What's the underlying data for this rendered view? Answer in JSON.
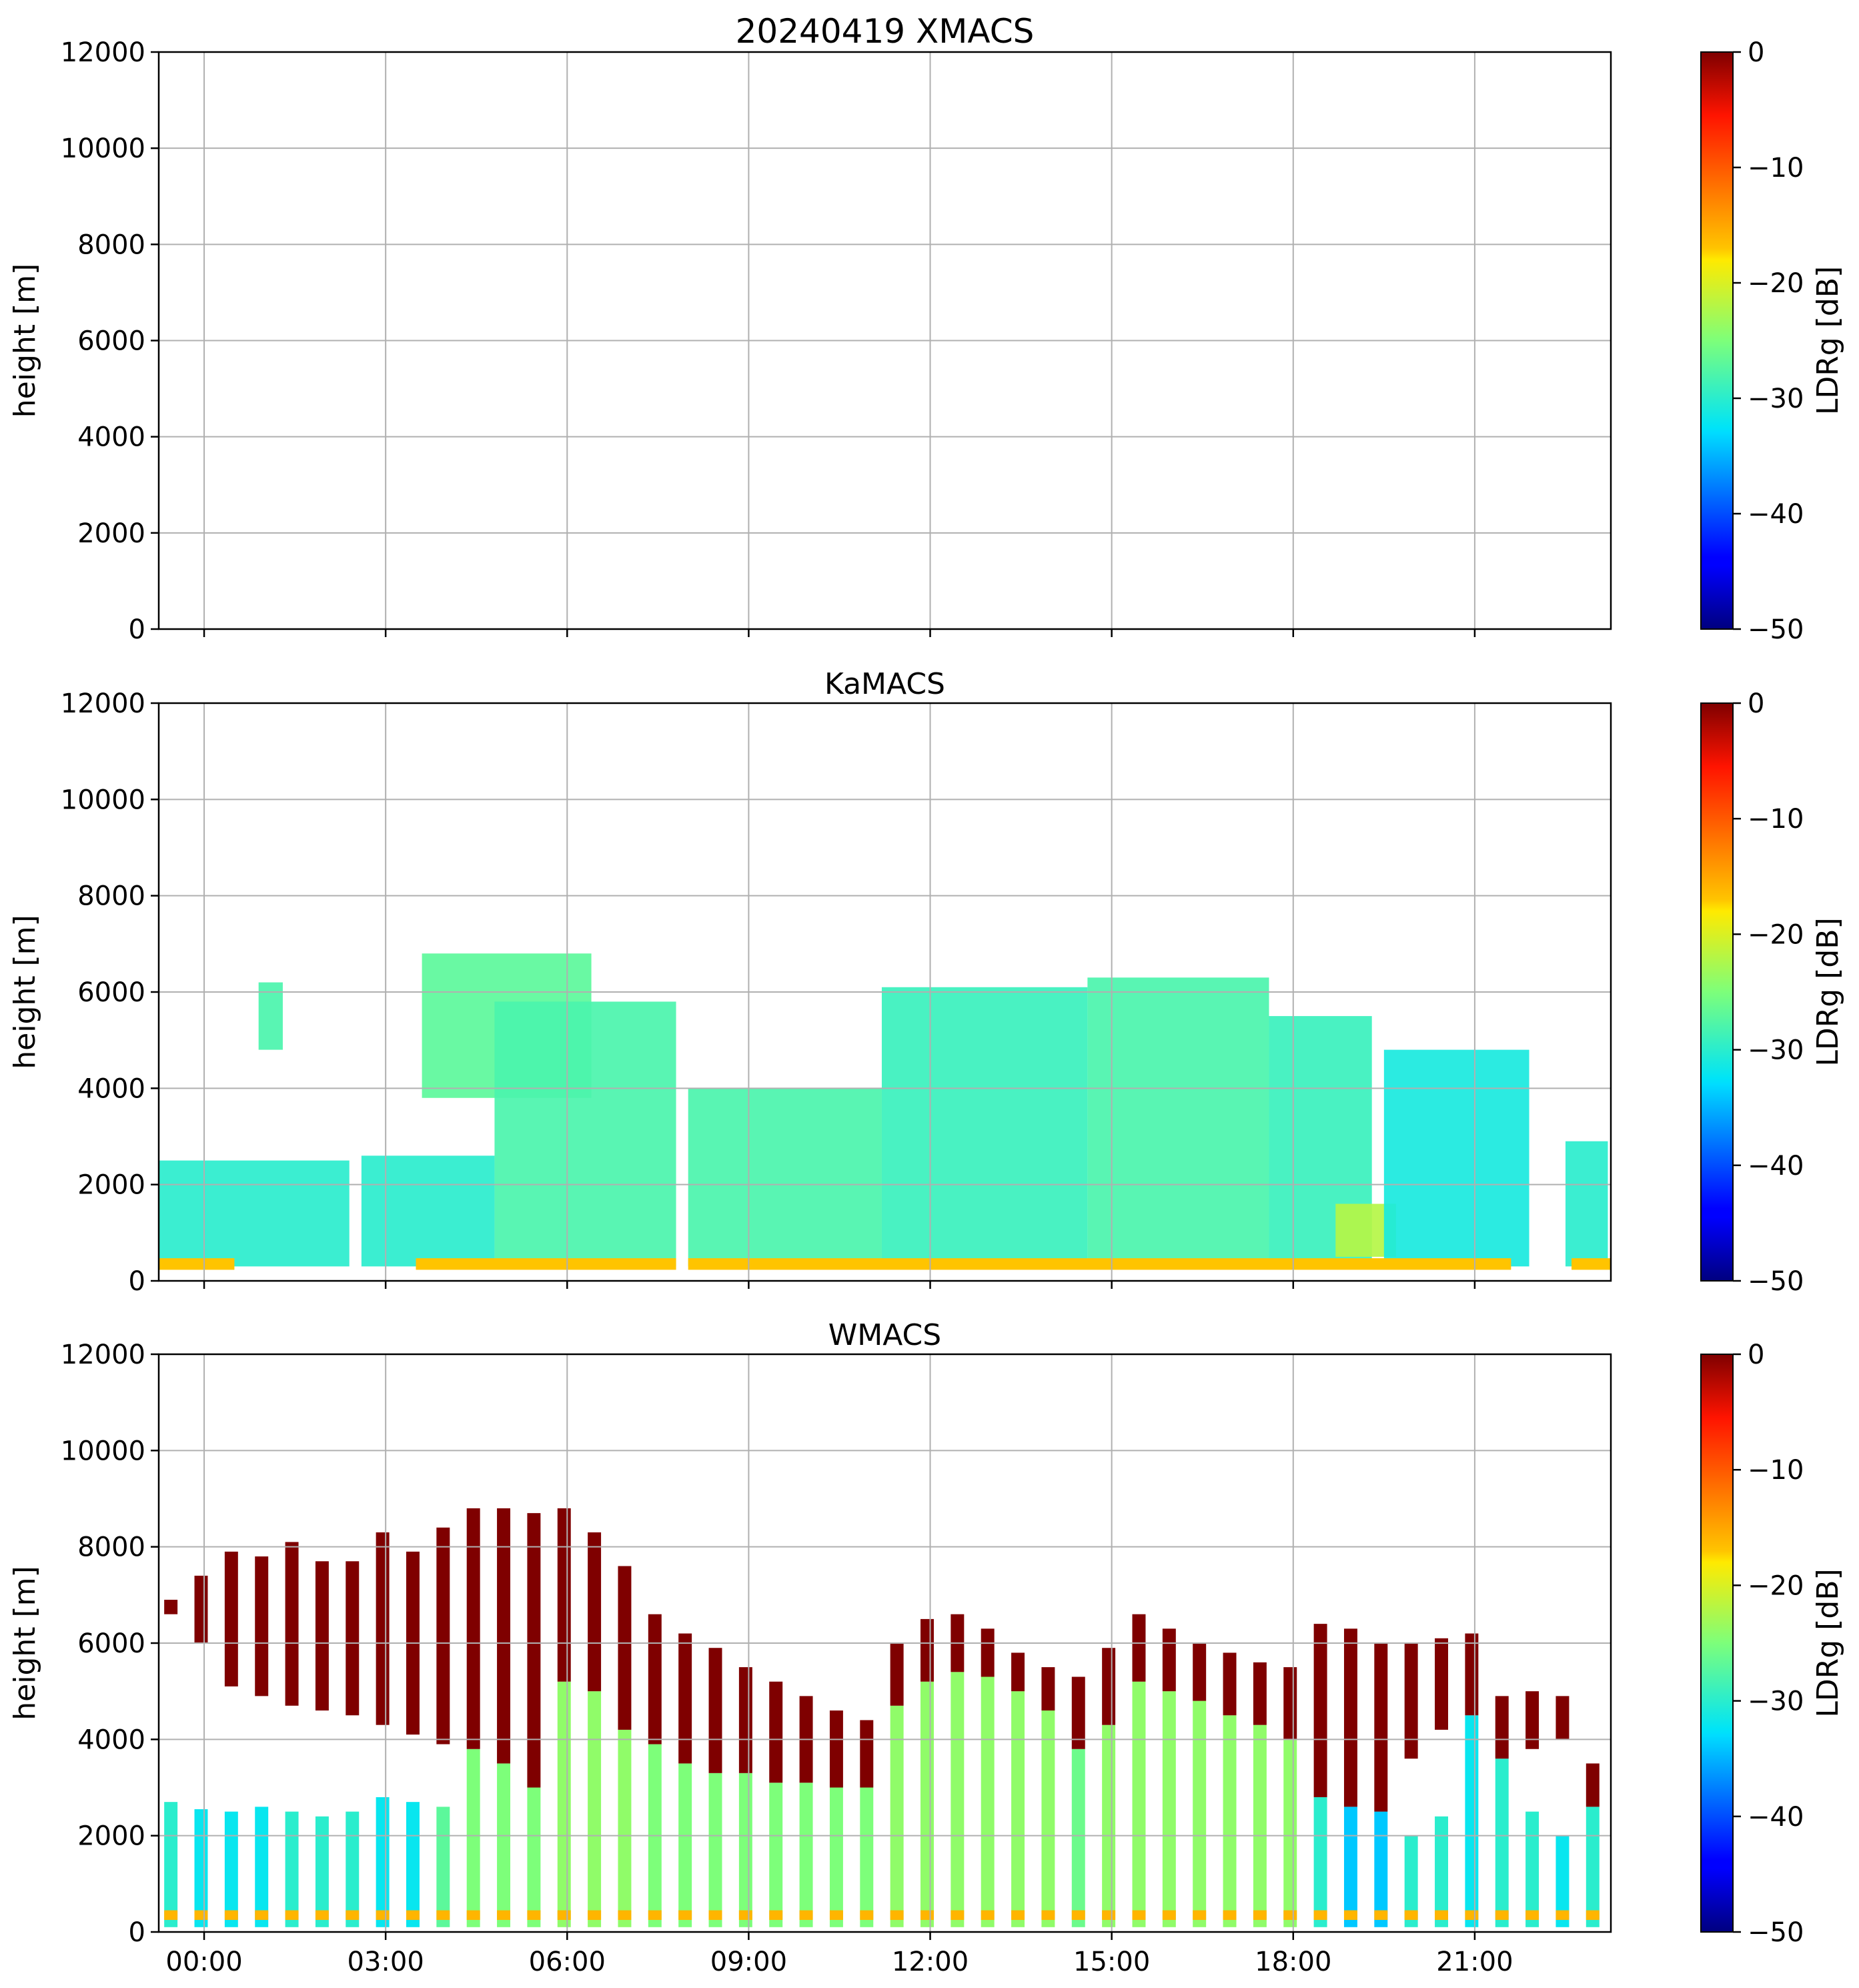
{
  "chart_data": [
    {
      "type": "heatmap",
      "title": "20240419 XMACS",
      "ylabel": "height [m]",
      "ylim": [
        0,
        12000
      ],
      "yticks": [
        0,
        2000,
        4000,
        6000,
        8000,
        10000,
        12000
      ],
      "xlim_hours": [
        -0.75,
        23.25
      ],
      "xticks_hours": [
        0,
        3,
        6,
        9,
        12,
        15,
        18,
        21
      ],
      "xticklabels": [],
      "grid": true,
      "colorbar": {
        "label": "LDRg [dB]",
        "range": [
          -50,
          0
        ],
        "ticks": [
          0,
          -10,
          -20,
          -30,
          -40,
          -50
        ],
        "tick_labels": [
          "0",
          "−10",
          "−20",
          "−30",
          "−40",
          "−50"
        ],
        "colormap": "jet"
      },
      "cloud_layers": []
    },
    {
      "type": "heatmap",
      "title": "KaMACS",
      "ylabel": "height [m]",
      "ylim": [
        0,
        12000
      ],
      "yticks": [
        0,
        2000,
        4000,
        6000,
        8000,
        10000,
        12000
      ],
      "xlim_hours": [
        -0.75,
        23.25
      ],
      "xticks_hours": [
        0,
        3,
        6,
        9,
        12,
        15,
        18,
        21
      ],
      "xticklabels": [],
      "grid": true,
      "colorbar": {
        "label": "LDRg [dB]",
        "range": [
          -50,
          0
        ],
        "ticks": [
          0,
          -10,
          -20,
          -30,
          -40,
          -50
        ],
        "tick_labels": [
          "0",
          "−10",
          "−20",
          "−30",
          "−40",
          "−50"
        ],
        "colormap": "jet"
      },
      "cloud_layers": [
        {
          "start_h": -0.75,
          "end_h": 2.4,
          "base_m": 300,
          "top_m": 2500,
          "ldr_db": -30
        },
        {
          "start_h": 0.9,
          "end_h": 1.3,
          "base_m": 4800,
          "top_m": 6200,
          "ldr_db": -28
        },
        {
          "start_h": 2.6,
          "end_h": 4.8,
          "base_m": 300,
          "top_m": 2600,
          "ldr_db": -30
        },
        {
          "start_h": 3.6,
          "end_h": 6.4,
          "base_m": 3800,
          "top_m": 6800,
          "ldr_db": -27
        },
        {
          "start_h": 4.8,
          "end_h": 7.8,
          "base_m": 300,
          "top_m": 5800,
          "ldr_db": -28
        },
        {
          "start_h": 8.0,
          "end_h": 11.2,
          "base_m": 300,
          "top_m": 4000,
          "ldr_db": -28
        },
        {
          "start_h": 11.2,
          "end_h": 14.6,
          "base_m": 300,
          "top_m": 6100,
          "ldr_db": -29
        },
        {
          "start_h": 14.6,
          "end_h": 17.6,
          "base_m": 300,
          "top_m": 6300,
          "ldr_db": -28
        },
        {
          "start_h": 17.6,
          "end_h": 19.3,
          "base_m": 300,
          "top_m": 5500,
          "ldr_db": -29
        },
        {
          "start_h": 18.7,
          "end_h": 19.7,
          "base_m": 500,
          "top_m": 1600,
          "ldr_db": -22
        },
        {
          "start_h": 19.5,
          "end_h": 21.9,
          "base_m": 300,
          "top_m": 4800,
          "ldr_db": -31
        },
        {
          "start_h": 22.5,
          "end_h": 23.2,
          "base_m": 300,
          "top_m": 2900,
          "ldr_db": -30
        }
      ],
      "surface_band": {
        "height_m": 350,
        "ldr_db": -17,
        "segments_h": [
          [
            -0.75,
            0.5
          ],
          [
            3.5,
            7.8
          ],
          [
            8.0,
            21.6
          ],
          [
            22.6,
            23.25
          ]
        ]
      }
    },
    {
      "type": "heatmap",
      "title": "WMACS",
      "ylabel": "height [m]",
      "ylim": [
        0,
        12000
      ],
      "yticks": [
        0,
        2000,
        4000,
        6000,
        8000,
        10000,
        12000
      ],
      "xlim_hours": [
        -0.75,
        23.25
      ],
      "xticks_hours": [
        0,
        3,
        6,
        9,
        12,
        15,
        18,
        21
      ],
      "xticklabels": [
        "00:00",
        "03:00",
        "06:00",
        "09:00",
        "12:00",
        "15:00",
        "18:00",
        "21:00"
      ],
      "grid": true,
      "colorbar": {
        "label": "LDRg [dB]",
        "range": [
          -50,
          0
        ],
        "ticks": [
          0,
          -10,
          -20,
          -30,
          -40,
          -50
        ],
        "tick_labels": [
          "0",
          "−10",
          "−20",
          "−30",
          "−40",
          "−50"
        ],
        "colormap": "jet"
      },
      "stripe_width_h": 0.22,
      "stripes": [
        {
          "t": -0.55,
          "low_top": 2700,
          "up_base": 6600,
          "up_top": 6900,
          "low_ldr": -30,
          "up_ldr": 0
        },
        {
          "t": -0.05,
          "low_top": 2550,
          "up_base": 6000,
          "up_top": 7400,
          "low_ldr": -32,
          "up_ldr": 0
        },
        {
          "t": 0.45,
          "low_top": 2500,
          "up_base": 5100,
          "up_top": 7900,
          "low_ldr": -32,
          "up_ldr": 0
        },
        {
          "t": 0.95,
          "low_top": 2600,
          "up_base": 4900,
          "up_top": 7800,
          "low_ldr": -32,
          "up_ldr": 0
        },
        {
          "t": 1.45,
          "low_top": 2500,
          "up_base": 4700,
          "up_top": 8100,
          "low_ldr": -30,
          "up_ldr": 0
        },
        {
          "t": 1.95,
          "low_top": 2400,
          "up_base": 4600,
          "up_top": 7700,
          "low_ldr": -30,
          "up_ldr": 0
        },
        {
          "t": 2.45,
          "low_top": 2500,
          "up_base": 4500,
          "up_top": 7700,
          "low_ldr": -30,
          "up_ldr": 0
        },
        {
          "t": 2.95,
          "low_top": 2800,
          "up_base": 4300,
          "up_top": 8300,
          "low_ldr": -32,
          "up_ldr": 0
        },
        {
          "t": 3.45,
          "low_top": 2700,
          "up_base": 4100,
          "up_top": 7900,
          "low_ldr": -32,
          "up_ldr": 0
        },
        {
          "t": 3.95,
          "low_top": 2600,
          "up_base": 3900,
          "up_top": 8400,
          "low_ldr": -27,
          "up_ldr": 0
        },
        {
          "t": 4.45,
          "low_top": 3800,
          "up_base": 3800,
          "up_top": 8800,
          "low_ldr": -25,
          "up_ldr": 0
        },
        {
          "t": 4.95,
          "low_top": 3500,
          "up_base": 3500,
          "up_top": 8800,
          "low_ldr": -25,
          "up_ldr": 0
        },
        {
          "t": 5.45,
          "low_top": 3000,
          "up_base": 3000,
          "up_top": 8700,
          "low_ldr": -25,
          "up_ldr": 0
        },
        {
          "t": 5.95,
          "low_top": 5200,
          "up_base": 5200,
          "up_top": 8800,
          "low_ldr": -24,
          "up_ldr": 0
        },
        {
          "t": 6.45,
          "low_top": 5000,
          "up_base": 5000,
          "up_top": 8300,
          "low_ldr": -24,
          "up_ldr": 0
        },
        {
          "t": 6.95,
          "low_top": 4200,
          "up_base": 4200,
          "up_top": 7600,
          "low_ldr": -24,
          "up_ldr": 0
        },
        {
          "t": 7.45,
          "low_top": 3900,
          "up_base": 3900,
          "up_top": 6600,
          "low_ldr": -25,
          "up_ldr": 0
        },
        {
          "t": 7.95,
          "low_top": 3500,
          "up_base": 3500,
          "up_top": 6200,
          "low_ldr": -25,
          "up_ldr": 0
        },
        {
          "t": 8.45,
          "low_top": 3300,
          "up_base": 3300,
          "up_top": 5900,
          "low_ldr": -25,
          "up_ldr": 0
        },
        {
          "t": 8.95,
          "low_top": 3300,
          "up_base": 3300,
          "up_top": 5500,
          "low_ldr": -25,
          "up_ldr": 0
        },
        {
          "t": 9.45,
          "low_top": 3100,
          "up_base": 3100,
          "up_top": 5200,
          "low_ldr": -25,
          "up_ldr": 0
        },
        {
          "t": 9.95,
          "low_top": 3100,
          "up_base": 3100,
          "up_top": 4900,
          "low_ldr": -25,
          "up_ldr": 0
        },
        {
          "t": 10.45,
          "low_top": 3000,
          "up_base": 3000,
          "up_top": 4600,
          "low_ldr": -25,
          "up_ldr": 0
        },
        {
          "t": 10.95,
          "low_top": 3000,
          "up_base": 3000,
          "up_top": 4400,
          "low_ldr": -25,
          "up_ldr": 0
        },
        {
          "t": 11.45,
          "low_top": 4700,
          "up_base": 4700,
          "up_top": 6000,
          "low_ldr": -24,
          "up_ldr": 0
        },
        {
          "t": 11.95,
          "low_top": 5200,
          "up_base": 5200,
          "up_top": 6500,
          "low_ldr": -24,
          "up_ldr": 0
        },
        {
          "t": 12.45,
          "low_top": 5400,
          "up_base": 5400,
          "up_top": 6600,
          "low_ldr": -24,
          "up_ldr": 0
        },
        {
          "t": 12.95,
          "low_top": 5300,
          "up_base": 5300,
          "up_top": 6300,
          "low_ldr": -24,
          "up_ldr": 0
        },
        {
          "t": 13.45,
          "low_top": 5000,
          "up_base": 5000,
          "up_top": 5800,
          "low_ldr": -24,
          "up_ldr": 0
        },
        {
          "t": 13.95,
          "low_top": 4600,
          "up_base": 4600,
          "up_top": 5500,
          "low_ldr": -24,
          "up_ldr": 0
        },
        {
          "t": 14.45,
          "low_top": 3800,
          "up_base": 3800,
          "up_top": 5300,
          "low_ldr": -26,
          "up_ldr": 0
        },
        {
          "t": 14.95,
          "low_top": 4300,
          "up_base": 4300,
          "up_top": 5900,
          "low_ldr": -24,
          "up_ldr": 0
        },
        {
          "t": 15.45,
          "low_top": 5200,
          "up_base": 5200,
          "up_top": 6600,
          "low_ldr": -24,
          "up_ldr": 0
        },
        {
          "t": 15.95,
          "low_top": 5000,
          "up_base": 5000,
          "up_top": 6300,
          "low_ldr": -24,
          "up_ldr": 0
        },
        {
          "t": 16.45,
          "low_top": 4800,
          "up_base": 4800,
          "up_top": 6000,
          "low_ldr": -24,
          "up_ldr": 0
        },
        {
          "t": 16.95,
          "low_top": 4500,
          "up_base": 4500,
          "up_top": 5800,
          "low_ldr": -24,
          "up_ldr": 0
        },
        {
          "t": 17.45,
          "low_top": 4300,
          "up_base": 4300,
          "up_top": 5600,
          "low_ldr": -24,
          "up_ldr": 0
        },
        {
          "t": 17.95,
          "low_top": 4000,
          "up_base": 4000,
          "up_top": 5500,
          "low_ldr": -24,
          "up_ldr": 0
        },
        {
          "t": 18.45,
          "low_top": 2800,
          "up_base": 2800,
          "up_top": 6400,
          "low_ldr": -30,
          "up_ldr": 0
        },
        {
          "t": 18.95,
          "low_top": 2600,
          "up_base": 2600,
          "up_top": 6300,
          "low_ldr": -34,
          "up_ldr": 0
        },
        {
          "t": 19.45,
          "low_top": 2500,
          "up_base": 2500,
          "up_top": 6000,
          "low_ldr": -34,
          "up_ldr": 0
        },
        {
          "t": 19.95,
          "low_top": 2000,
          "up_base": 3600,
          "up_top": 6000,
          "low_ldr": -30,
          "up_ldr": 0
        },
        {
          "t": 20.45,
          "low_top": 2400,
          "up_base": 4200,
          "up_top": 6100,
          "low_ldr": -30,
          "up_ldr": 0
        },
        {
          "t": 20.95,
          "low_top": 4500,
          "up_base": 4500,
          "up_top": 6200,
          "low_ldr": -32,
          "up_ldr": 0
        },
        {
          "t": 21.45,
          "low_top": 3600,
          "up_base": 3600,
          "up_top": 4900,
          "low_ldr": -30,
          "up_ldr": 0
        },
        {
          "t": 21.95,
          "low_top": 2500,
          "up_base": 3800,
          "up_top": 5000,
          "low_ldr": -30,
          "up_ldr": 0
        },
        {
          "t": 22.45,
          "low_top": 2000,
          "up_base": 4000,
          "up_top": 4900,
          "low_ldr": -32,
          "up_ldr": 0
        },
        {
          "t": 22.95,
          "low_top": 2600,
          "up_base": 2600,
          "up_top": 3500,
          "low_ldr": -30,
          "up_ldr": 0
        }
      ]
    }
  ]
}
